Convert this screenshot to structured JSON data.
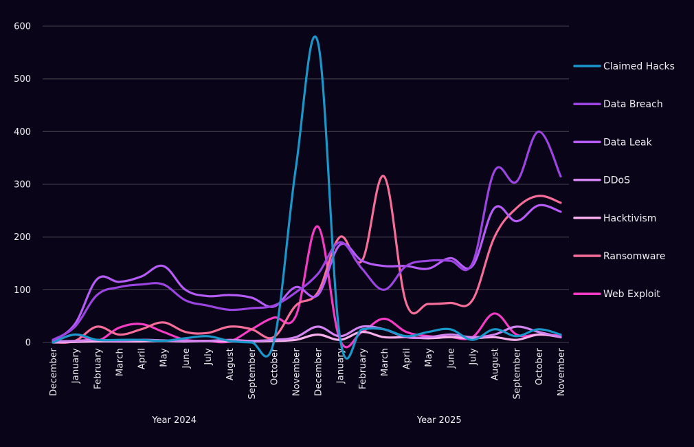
{
  "chart_data": {
    "type": "line",
    "title": "",
    "xlabel": "",
    "ylabel": "",
    "ylim": [
      0,
      600
    ],
    "yticks": [
      0,
      100,
      200,
      300,
      400,
      500,
      600
    ],
    "grid": true,
    "smooth": true,
    "legend_position": "right",
    "categories": [
      "December",
      "January",
      "February",
      "March",
      "April",
      "May",
      "June",
      "July",
      "August",
      "September",
      "October",
      "November",
      "December",
      "January",
      "February",
      "March",
      "April",
      "May",
      "June",
      "July",
      "August",
      "September",
      "October",
      "November"
    ],
    "category_groups": [
      {
        "label": "Year 2024",
        "start": 0,
        "end": 11
      },
      {
        "label": "Year 2025",
        "start": 12,
        "end": 23
      }
    ],
    "series": [
      {
        "name": "Claimed Hacks",
        "color": "#1a96c8",
        "values": [
          0,
          15,
          5,
          5,
          5,
          3,
          8,
          12,
          3,
          0,
          0,
          330,
          570,
          10,
          25,
          25,
          12,
          20,
          25,
          5,
          25,
          12,
          25,
          15
        ]
      },
      {
        "name": "Data Breach",
        "color": "#9b45e0",
        "values": [
          5,
          30,
          90,
          105,
          110,
          110,
          80,
          70,
          62,
          65,
          70,
          95,
          130,
          190,
          140,
          100,
          145,
          155,
          155,
          150,
          325,
          305,
          400,
          315
        ]
      },
      {
        "name": "Data Leak",
        "color": "#b45cf5",
        "values": [
          3,
          35,
          120,
          115,
          125,
          145,
          100,
          88,
          90,
          85,
          68,
          105,
          90,
          185,
          155,
          145,
          145,
          140,
          160,
          145,
          255,
          230,
          260,
          248
        ]
      },
      {
        "name": "DDoS",
        "color": "#d184f0",
        "values": [
          2,
          3,
          5,
          3,
          5,
          4,
          3,
          3,
          5,
          3,
          5,
          10,
          30,
          12,
          30,
          25,
          10,
          10,
          15,
          10,
          15,
          30,
          20,
          10
        ]
      },
      {
        "name": "Hacktivism",
        "color": "#f7b0ec",
        "values": [
          0,
          1,
          2,
          2,
          2,
          3,
          2,
          3,
          2,
          2,
          3,
          5,
          15,
          5,
          20,
          10,
          10,
          8,
          10,
          8,
          10,
          5,
          15,
          10
        ]
      },
      {
        "name": "Ransomware",
        "color": "#f56e9a",
        "values": [
          0,
          3,
          30,
          15,
          25,
          38,
          20,
          18,
          30,
          25,
          10,
          70,
          95,
          200,
          155,
          315,
          75,
          73,
          75,
          80,
          200,
          255,
          278,
          265
        ]
      },
      {
        "name": "Web Exploit",
        "color": "#f23cc4",
        "values": [
          0,
          15,
          3,
          28,
          35,
          20,
          5,
          3,
          2,
          25,
          47,
          50,
          220,
          5,
          20,
          45,
          20,
          12,
          10,
          10,
          55,
          15,
          15,
          13
        ]
      }
    ]
  }
}
